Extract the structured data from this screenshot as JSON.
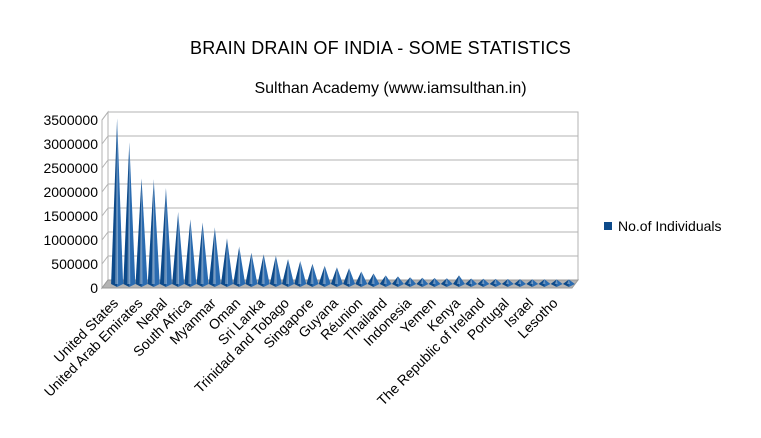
{
  "chart_data": {
    "type": "bar",
    "title": "BRAIN DRAIN OF INDIA - SOME STATISTICS",
    "subtitle": "Sulthan Academy (www.iamsulthan.in)",
    "xlabel": "",
    "ylabel": "",
    "ylim": [
      0,
      3500000
    ],
    "yticks": [
      0,
      500000,
      1000000,
      1500000,
      2000000,
      2500000,
      3000000,
      3500000
    ],
    "ytick_labels": [
      "0",
      "500000",
      "1000000",
      "1500000",
      "2000000",
      "2500000",
      "3000000",
      "3500000"
    ],
    "grid": true,
    "legend_position": "right",
    "categories": [
      "United States",
      "",
      "United Arab Emirates",
      "",
      "Nepal",
      "",
      "South Africa",
      "",
      "Myanmar",
      "",
      "Oman",
      "",
      "Sri Lanka",
      "",
      "Trinidad and Tobago",
      "",
      "Singapore",
      "",
      "Guyana",
      "",
      "Réunion",
      "",
      "Thailand",
      "",
      "Indonesia",
      "",
      "Yemen",
      "",
      "Kenya",
      "",
      "The Republic of Ireland",
      "",
      "Portugal",
      "",
      "Israel",
      "",
      "Lesotho",
      ""
    ],
    "series": [
      {
        "name": "No.of Individuals",
        "color": "#0d4a8a",
        "values": [
          3450000,
          2950000,
          2200000,
          2180000,
          2000000,
          1500000,
          1350000,
          1280000,
          1180000,
          950000,
          780000,
          650000,
          620000,
          590000,
          520000,
          480000,
          420000,
          380000,
          350000,
          330000,
          260000,
          220000,
          180000,
          160000,
          140000,
          130000,
          125000,
          120000,
          180000,
          115000,
          110000,
          108000,
          105000,
          102000,
          100000,
          98000,
          96000,
          95000
        ]
      }
    ]
  }
}
